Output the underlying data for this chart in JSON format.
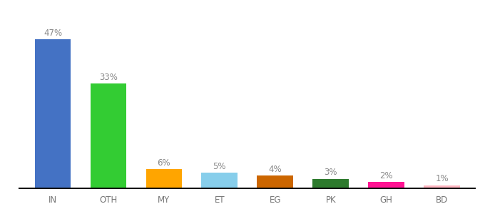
{
  "categories": [
    "IN",
    "OTH",
    "MY",
    "ET",
    "EG",
    "PK",
    "GH",
    "BD"
  ],
  "values": [
    47,
    33,
    6,
    5,
    4,
    3,
    2,
    1
  ],
  "labels": [
    "47%",
    "33%",
    "6%",
    "5%",
    "4%",
    "3%",
    "2%",
    "1%"
  ],
  "bar_colors": [
    "#4472C4",
    "#33CC33",
    "#FFA500",
    "#87CEEB",
    "#CC6600",
    "#2D7A2D",
    "#FF1493",
    "#FFB6C1"
  ],
  "background_color": "#ffffff",
  "ylim": [
    0,
    54
  ],
  "label_fontsize": 8.5,
  "tick_fontsize": 8.5,
  "bar_width": 0.65,
  "label_color": "#888888",
  "tick_color": "#777777"
}
